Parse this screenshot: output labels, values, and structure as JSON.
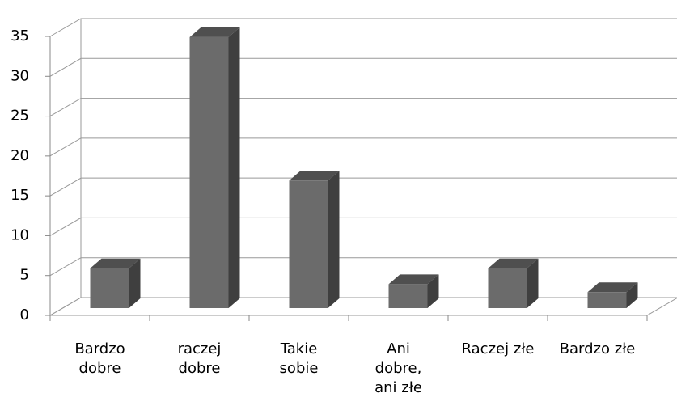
{
  "chart_data": {
    "type": "bar",
    "categories": [
      "Bardzo dobre",
      "raczej dobre",
      "Takie sobie",
      "Ani dobre, ani złe",
      "Raczej złe",
      "Bardzo złe"
    ],
    "values": [
      5,
      34,
      16,
      3,
      5,
      2
    ],
    "color": "#6b6b6b",
    "ylim": [
      0,
      35
    ],
    "yticks": [
      0,
      5,
      10,
      15,
      20,
      25,
      30,
      35
    ],
    "grid": true
  }
}
